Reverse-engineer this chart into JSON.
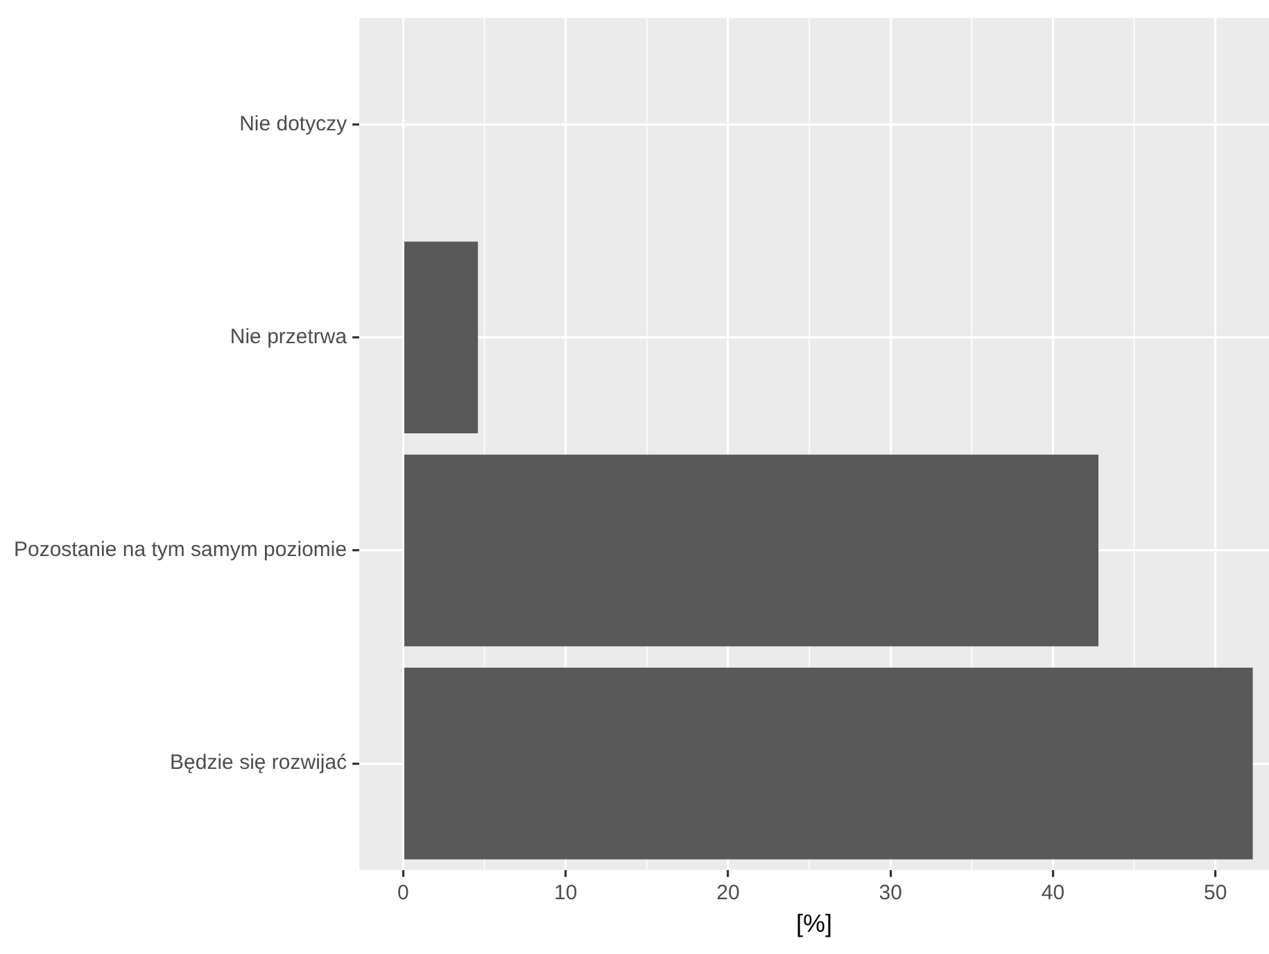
{
  "chart_data": {
    "type": "bar",
    "orientation": "horizontal",
    "xlabel": "[%]",
    "categories": [
      "Nie dotyczy",
      "Nie przetrwa",
      "Pozostanie na tym samym poziomie",
      "Będzie się rozwijać"
    ],
    "values": [
      0,
      4.6,
      42.8,
      52.3
    ],
    "color": "#595959",
    "xlim": [
      -2.7,
      53.3
    ],
    "xticks": [
      0,
      10,
      20,
      30,
      40,
      50
    ],
    "grid": true,
    "legend": false
  }
}
